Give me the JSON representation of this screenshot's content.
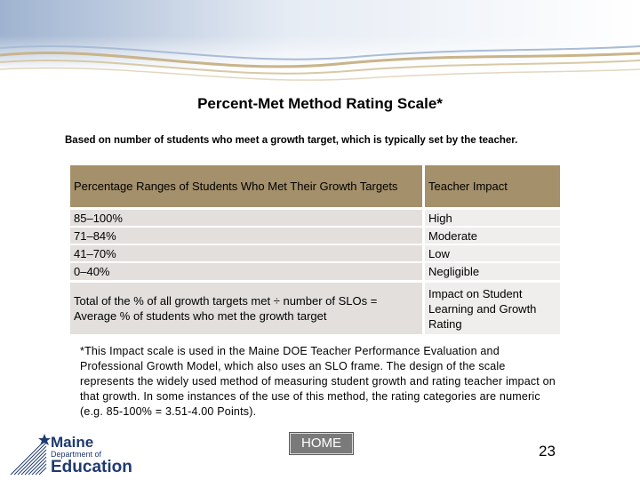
{
  "title": "Percent-Met Method Rating Scale*",
  "subtitle": "Based on number of students who meet a growth target, which is typically set by the teacher.",
  "table": {
    "header": {
      "col1": "Percentage Ranges of Students Who Met Their Growth Targets",
      "col2": "Teacher Impact"
    },
    "rows": [
      {
        "range": "85–100%",
        "impact": "High"
      },
      {
        "range": "71–84%",
        "impact": "Moderate"
      },
      {
        "range": "41–70%",
        "impact": "Low"
      },
      {
        "range": "0–40%",
        "impact": "Negligible"
      }
    ],
    "total": {
      "col1": "Total of the % of all growth targets met ÷ number of SLOs = Average % of students who met the growth target",
      "col2": "Impact on Student Learning and Growth Rating"
    }
  },
  "footnote": "*This Impact scale is used in the Maine DOE Teacher Performance Evaluation and Professional Growth Model, which also uses an SLO frame. The design of the scale represents the widely used method of measuring student growth and rating teacher impact on that growth. In some instances of the use of this method, the rating categories are numeric (e.g. 85-100% = 3.51-4.00 Points).",
  "home_button": "HOME",
  "page_number": "23",
  "logo": {
    "line1": "Maine",
    "line2": "Department of",
    "line3": "Education"
  },
  "colors": {
    "header_bg": "#a4906a",
    "row_bg": "#e2dfdd",
    "banner_blue": "#b7c7dc",
    "banner_tan": "#c8b58f"
  }
}
